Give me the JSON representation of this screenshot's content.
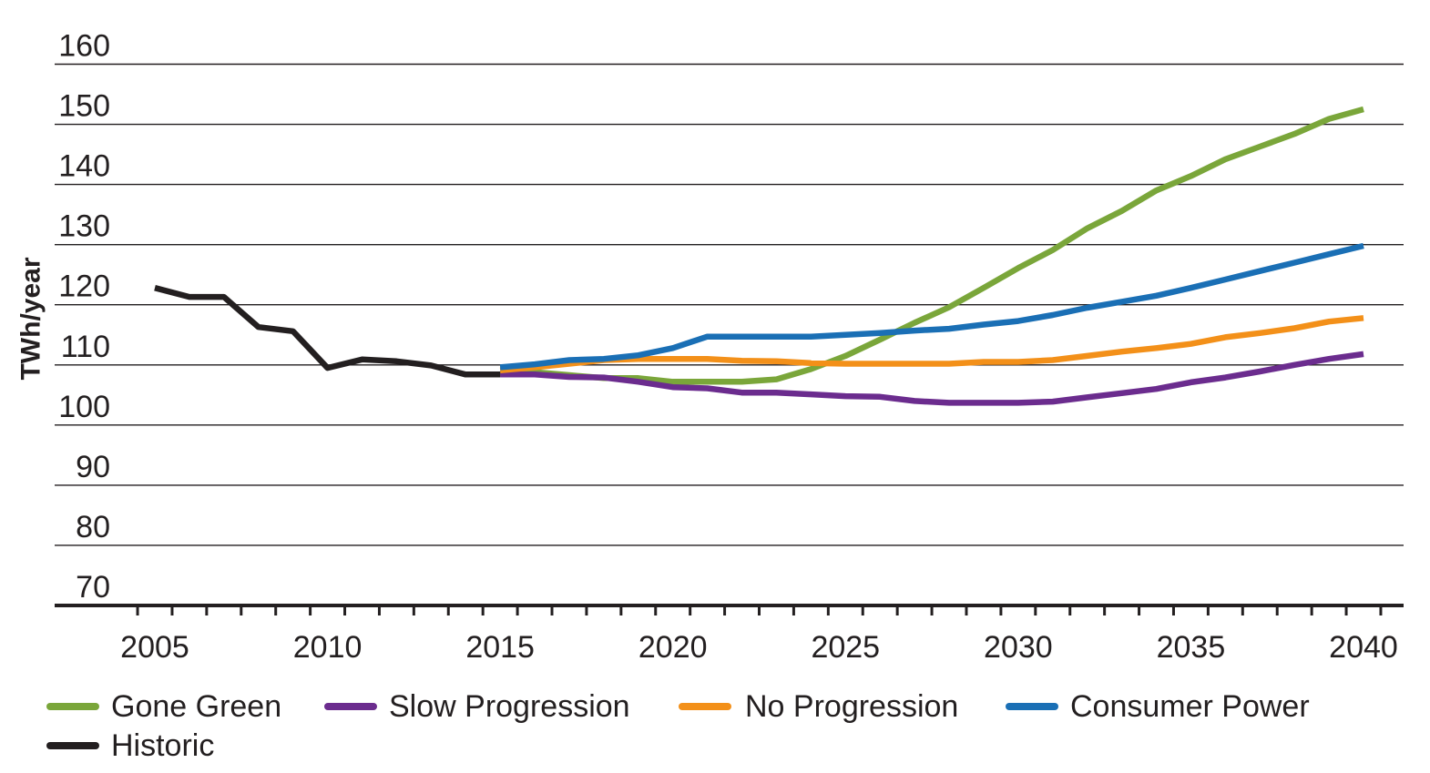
{
  "chart_data": {
    "type": "line",
    "ylabel": "TWh/year",
    "xlabel": "",
    "ylim": [
      70,
      160
    ],
    "xlim": [
      2005,
      2040
    ],
    "yticks": [
      70,
      80,
      90,
      100,
      110,
      120,
      130,
      140,
      150,
      160
    ],
    "xtick_labels": [
      2005,
      2010,
      2015,
      2020,
      2025,
      2030,
      2035,
      2040
    ],
    "grid": "horizontal",
    "legend_position": "bottom",
    "series": [
      {
        "name": "Gone Green",
        "color": "#7aa63a",
        "x": [
          2015,
          2016,
          2017,
          2018,
          2019,
          2020,
          2021,
          2022,
          2023,
          2024,
          2025,
          2026,
          2027,
          2028,
          2029,
          2030,
          2031,
          2032,
          2033,
          2034,
          2035,
          2036,
          2037,
          2038,
          2039,
          2040
        ],
        "values": [
          108.5,
          108.8,
          108.3,
          107.8,
          107.8,
          107.2,
          107.2,
          107.2,
          107.6,
          109.3,
          111.5,
          114.2,
          117.0,
          119.6,
          122.8,
          126.1,
          129.1,
          132.7,
          135.6,
          139.0,
          141.4,
          144.2,
          146.3,
          148.4,
          150.9,
          152.5
        ]
      },
      {
        "name": "Slow Progression",
        "color": "#6b2c8e",
        "x": [
          2015,
          2016,
          2017,
          2018,
          2019,
          2020,
          2021,
          2022,
          2023,
          2024,
          2025,
          2026,
          2027,
          2028,
          2029,
          2030,
          2031,
          2032,
          2033,
          2034,
          2035,
          2036,
          2037,
          2038,
          2039,
          2040
        ],
        "values": [
          108.4,
          108.4,
          108.0,
          107.9,
          107.2,
          106.3,
          106.1,
          105.4,
          105.4,
          105.1,
          104.8,
          104.7,
          104.0,
          103.7,
          103.7,
          103.7,
          103.9,
          104.6,
          105.3,
          106.0,
          107.1,
          107.9,
          108.9,
          110.0,
          111.0,
          111.8
        ]
      },
      {
        "name": "No Progression",
        "color": "#f39019",
        "x": [
          2015,
          2016,
          2017,
          2018,
          2019,
          2020,
          2021,
          2022,
          2023,
          2024,
          2025,
          2026,
          2027,
          2028,
          2029,
          2030,
          2031,
          2032,
          2033,
          2034,
          2035,
          2036,
          2037,
          2038,
          2039,
          2040
        ],
        "values": [
          109.1,
          109.6,
          110.2,
          110.8,
          111.0,
          111.0,
          111.0,
          110.7,
          110.6,
          110.3,
          110.2,
          110.2,
          110.2,
          110.2,
          110.5,
          110.5,
          110.8,
          111.5,
          112.2,
          112.8,
          113.5,
          114.6,
          115.3,
          116.1,
          117.2,
          117.8
        ]
      },
      {
        "name": "Consumer Power",
        "color": "#1a6fb5",
        "x": [
          2015,
          2016,
          2017,
          2018,
          2019,
          2020,
          2021,
          2022,
          2023,
          2024,
          2025,
          2026,
          2027,
          2028,
          2029,
          2030,
          2031,
          2032,
          2033,
          2034,
          2035,
          2036,
          2037,
          2038,
          2039,
          2040
        ],
        "values": [
          109.6,
          110.1,
          110.8,
          111.0,
          111.6,
          112.8,
          114.7,
          114.7,
          114.7,
          114.7,
          115.0,
          115.3,
          115.7,
          116.0,
          116.7,
          117.3,
          118.3,
          119.5,
          120.5,
          121.5,
          122.8,
          124.2,
          125.6,
          127.0,
          128.4,
          129.8
        ]
      },
      {
        "name": "Historic",
        "color": "#231f20",
        "x": [
          2005,
          2006,
          2007,
          2008,
          2009,
          2010,
          2011,
          2012,
          2013,
          2014,
          2015
        ],
        "values": [
          122.8,
          121.3,
          121.3,
          116.3,
          115.6,
          109.5,
          110.9,
          110.6,
          109.9,
          108.4,
          108.4
        ]
      }
    ]
  }
}
